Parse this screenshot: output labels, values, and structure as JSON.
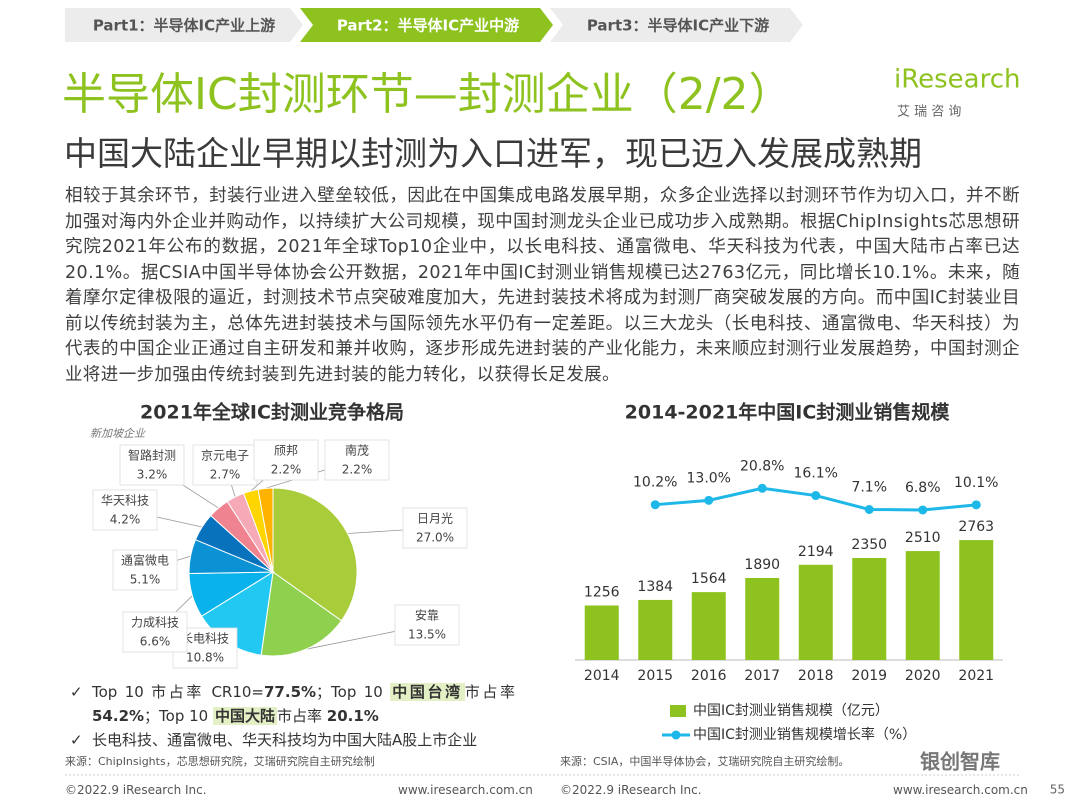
{
  "nav": [
    "Part1：半导体IC产业上游",
    "Part2：半导体IC产业中游",
    "Part3：半导体IC产业下游"
  ],
  "nav_active": 1,
  "title": "半导体IC封测环节—封测企业（2/2）",
  "subtitle": "中国大陆企业早期以封测为入口进军，现已迈入发展成熟期",
  "logo": {
    "brand": "iResearch",
    "name": "艾 瑞 咨 询"
  },
  "body": "相较于其余环节，封装行业进入壁垒较低，因此在中国集成电路发展早期，众多企业选择以封测环节作为切入口，并不断加强对海内外企业并购动作，以持续扩大公司规模，现中国封测龙头企业已成功步入成熟期。根据ChipInsights芯思想研究院2021年公布的数据，2021年全球Top10企业中，以长电科技、通富微电、华天科技为代表，中国大陆市占率已达20.1%。据CSIA中国半导体协会公开数据，2021年中国IC封测业销售规模已达2763亿元，同比增长10.1%。未来，随着摩尔定律极限的逼近，封测技术节点突破难度加大，先进封装技术将成为封测厂商突破发展的方向。而中国IC封装业目前以传统封装为主，总体先进封装技术与国际领先水平仍有一定差距。以三大龙头（长电科技、通富微电、华天科技）为代表的中国企业正通过自主研发和兼并收购，逐步形成先进封装的产业化能力，未来顺应封测行业发展趋势，中国封测企业将进一步加强由传统封装到先进封装的能力转化，以获得长足发展。",
  "bullets": [
    [
      {
        "text": "Top 10 市占率 CR10=",
        "style": "plain"
      },
      {
        "text": "77.5%",
        "style": "bold"
      },
      {
        "text": "；Top 10 ",
        "style": "plain"
      },
      {
        "text": "中国台湾",
        "style": "highlight"
      },
      {
        "text": "市占率 ",
        "style": "plain"
      },
      {
        "text": "54.2%",
        "style": "bold"
      },
      {
        "text": "；Top 10 ",
        "style": "plain"
      },
      {
        "text": "中国大陆",
        "style": "highlight"
      },
      {
        "text": "市占率 ",
        "style": "plain"
      },
      {
        "text": "20.1%",
        "style": "bold"
      }
    ],
    [
      {
        "text": "长电科技、通富微电、华天科技均为中国大陆A股上市企业",
        "style": "plain"
      }
    ]
  ],
  "sources": [
    "来源：ChipInsights，芯思想研究院，艾瑞研究院自主研究绘制",
    "来源：CSIA，中国半导体协会，艾瑞研究院自主研究绘制。"
  ],
  "footer": {
    "left": [
      "©2022.9 iResearch Inc.",
      "www.iresearch.com.cn"
    ],
    "right": [
      "©2022.9 iResearch Inc.",
      "www.iresearch.com.cn"
    ],
    "page": 55,
    "watermark": "银创智库"
  },
  "chart_data": [
    {
      "type": "pie",
      "title": "2021年全球IC封测业竞争格局",
      "annotation": "新加坡企业",
      "categories": [
        "日月光",
        "安靠",
        "长电科技",
        "力成科技",
        "通富微电",
        "华天科技",
        "智路封测",
        "京元电子",
        "颀邦",
        "南茂"
      ],
      "values": [
        27.0,
        13.5,
        10.8,
        6.6,
        5.1,
        4.2,
        3.2,
        2.7,
        2.2,
        2.2
      ],
      "value_labels": [
        "27.0%",
        "13.5%",
        "10.8%",
        "6.6%",
        "5.1%",
        "4.2%",
        "3.2%",
        "2.7%",
        "2.2%",
        "2.2%"
      ],
      "colors": [
        "#a9cc3a",
        "#8fd14f",
        "#22c8f2",
        "#09b2ea",
        "#0a92d4",
        "#0872bd",
        "#ef8390",
        "#f6a9b6",
        "#ffd500",
        "#ffb300"
      ]
    },
    {
      "type": "combo",
      "title": "2014-2021年中国IC封测业销售规模",
      "categories": [
        "2014",
        "2015",
        "2016",
        "2017",
        "2018",
        "2019",
        "2020",
        "2021"
      ],
      "series": [
        {
          "name": "中国IC封测业销售规模（亿元）",
          "type": "bar",
          "color": "#8dc21f",
          "values": [
            1256,
            1384,
            1564,
            1890,
            2194,
            2350,
            2510,
            2763
          ]
        },
        {
          "name": "中国IC封测业销售规模增长率（%）",
          "type": "line",
          "axis": "y2",
          "color": "#1db8e8",
          "values": [
            null,
            10.2,
            13.0,
            20.8,
            16.1,
            7.1,
            6.8,
            10.1
          ],
          "value_labels": [
            null,
            "10.2%",
            "13.0%",
            "20.8%",
            "16.1%",
            "7.1%",
            "6.8%",
            "10.1%"
          ]
        }
      ],
      "ylim": [
        0,
        5000
      ],
      "y2lim": [
        -90,
        50
      ]
    }
  ]
}
